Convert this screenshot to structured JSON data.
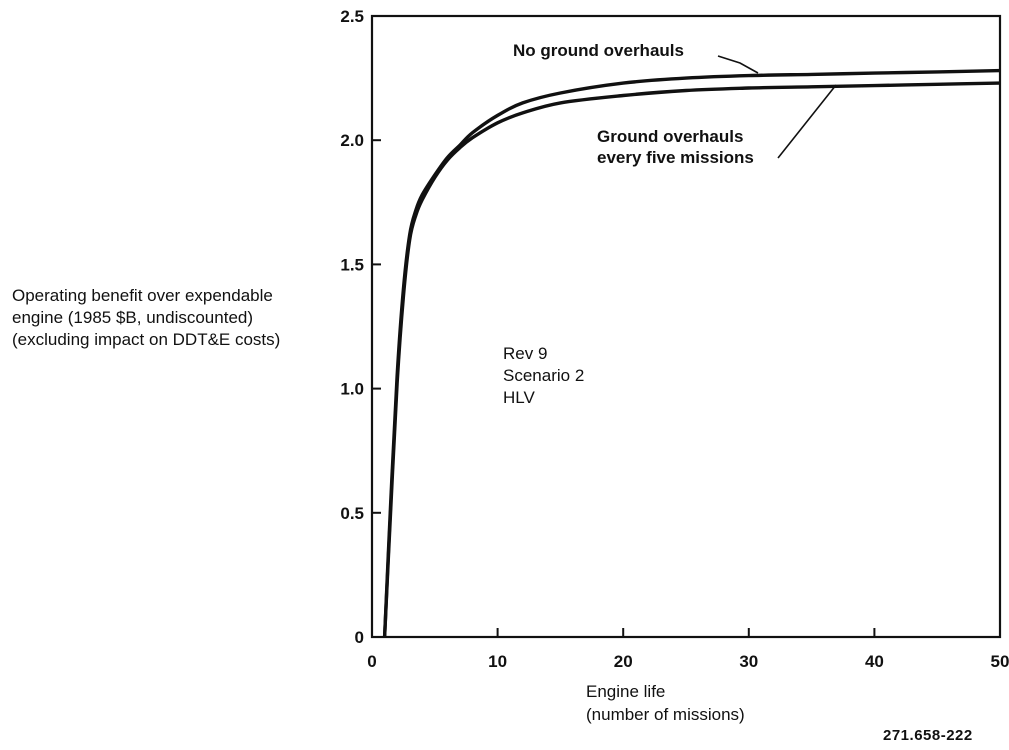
{
  "chart_data": {
    "type": "line",
    "ylabel_lines": [
      "Operating benefit over expendable",
      "engine (1985 $B, undiscounted)",
      "(excluding impact on DDT&E costs)"
    ],
    "xlabel_lines": [
      "Engine life",
      "(number of missions)"
    ],
    "xlim": [
      0,
      50
    ],
    "ylim": [
      0,
      2.5
    ],
    "x_ticks": [
      0,
      10,
      20,
      30,
      40,
      50
    ],
    "x_tick_labels": [
      "0",
      "10",
      "20",
      "30",
      "40",
      "50"
    ],
    "y_ticks": [
      0,
      0.5,
      1.0,
      1.5,
      2.0,
      2.5
    ],
    "y_tick_labels": [
      "0",
      "0.5",
      "1.0",
      "1.5",
      "2.0",
      "2.5"
    ],
    "grid": false,
    "series": [
      {
        "name": "No ground overhauls",
        "x": [
          1,
          1.5,
          2,
          2.5,
          3,
          3.5,
          4,
          5,
          6,
          7,
          8,
          10,
          12,
          15,
          20,
          25,
          30,
          35,
          40,
          45,
          50
        ],
        "y": [
          0,
          0.55,
          1.05,
          1.4,
          1.62,
          1.72,
          1.78,
          1.86,
          1.93,
          1.98,
          2.03,
          2.1,
          2.15,
          2.19,
          2.23,
          2.25,
          2.26,
          2.265,
          2.27,
          2.275,
          2.28
        ]
      },
      {
        "name": "Ground overhauls every five missions",
        "x": [
          1,
          1.5,
          2,
          2.5,
          3,
          3.5,
          4,
          5,
          6,
          7,
          8,
          10,
          12,
          15,
          20,
          25,
          30,
          35,
          40,
          45,
          50
        ],
        "y": [
          0,
          0.52,
          1.02,
          1.37,
          1.6,
          1.7,
          1.76,
          1.85,
          1.92,
          1.97,
          2.01,
          2.07,
          2.11,
          2.15,
          2.18,
          2.2,
          2.21,
          2.215,
          2.22,
          2.225,
          2.23
        ]
      }
    ],
    "annotations": {
      "no_overhaul": "No ground overhauls",
      "overhaul_lines": [
        "Ground overhauls",
        "every five missions"
      ],
      "inset_lines": [
        "Rev 9",
        "Scenario 2",
        "HLV"
      ]
    },
    "figure_id": "271.658-222"
  }
}
